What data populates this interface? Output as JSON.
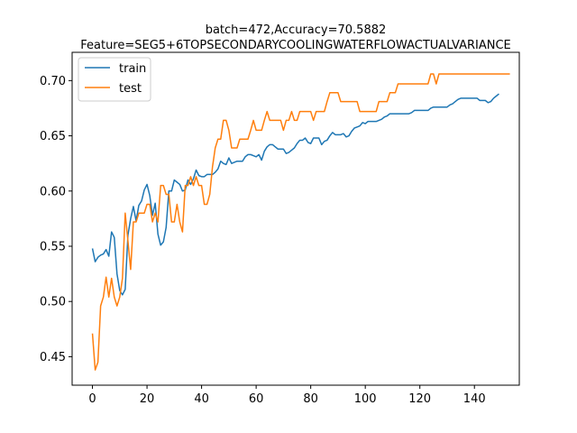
{
  "chart_data": {
    "type": "line",
    "title_lines": [
      "batch=472,Accuracy=70.5882",
      "Feature=SEG5+6TOPSECONDARYCOOLINGWATERFLOWACTUALVARIANCE"
    ],
    "xlabel": "",
    "ylabel": "",
    "xlim": [
      -7.45,
      156.45
    ],
    "ylim": [
      0.4242,
      0.7256
    ],
    "x_ticks": [
      0,
      20,
      40,
      60,
      80,
      100,
      120,
      140
    ],
    "y_ticks": [
      0.45,
      0.5,
      0.55,
      0.6,
      0.65,
      0.7
    ],
    "grid": false,
    "legend_position": "top-left",
    "series": [
      {
        "name": "train",
        "color": "#1f77b4",
        "values": [
          0.548,
          0.536,
          0.54,
          0.542,
          0.543,
          0.547,
          0.541,
          0.563,
          0.558,
          0.525,
          0.51,
          0.506,
          0.511,
          0.56,
          0.575,
          0.586,
          0.573,
          0.587,
          0.591,
          0.601,
          0.606,
          0.596,
          0.578,
          0.589,
          0.561,
          0.551,
          0.554,
          0.567,
          0.6,
          0.6,
          0.61,
          0.608,
          0.606,
          0.6,
          0.601,
          0.61,
          0.606,
          0.611,
          0.619,
          0.614,
          0.613,
          0.613,
          0.615,
          0.615,
          0.615,
          0.617,
          0.62,
          0.627,
          0.625,
          0.624,
          0.63,
          0.625,
          0.626,
          0.627,
          0.627,
          0.627,
          0.631,
          0.633,
          0.633,
          0.632,
          0.631,
          0.633,
          0.628,
          0.636,
          0.64,
          0.642,
          0.642,
          0.64,
          0.638,
          0.638,
          0.638,
          0.634,
          0.635,
          0.637,
          0.639,
          0.643,
          0.646,
          0.646,
          0.648,
          0.644,
          0.643,
          0.648,
          0.648,
          0.648,
          0.642,
          0.645,
          0.646,
          0.65,
          0.653,
          0.651,
          0.651,
          0.651,
          0.652,
          0.649,
          0.65,
          0.654,
          0.657,
          0.658,
          0.659,
          0.662,
          0.661,
          0.663,
          0.663,
          0.663,
          0.663,
          0.664,
          0.665,
          0.667,
          0.668,
          0.67,
          0.67,
          0.67,
          0.67,
          0.67,
          0.67,
          0.67,
          0.67,
          0.671,
          0.673,
          0.673,
          0.673,
          0.673,
          0.673,
          0.673,
          0.675,
          0.676,
          0.676,
          0.676,
          0.676,
          0.676,
          0.676,
          0.678,
          0.679,
          0.681,
          0.683,
          0.684,
          0.684,
          0.684,
          0.684,
          0.684,
          0.684,
          0.684,
          0.682,
          0.682,
          0.682,
          0.68,
          0.681,
          0.684,
          0.686,
          0.688
        ]
      },
      {
        "name": "test",
        "color": "#ff7f0e",
        "values": [
          0.471,
          0.438,
          0.445,
          0.496,
          0.504,
          0.522,
          0.504,
          0.521,
          0.504,
          0.496,
          0.504,
          0.521,
          0.58,
          0.555,
          0.529,
          0.572,
          0.572,
          0.58,
          0.58,
          0.58,
          0.588,
          0.588,
          0.572,
          0.58,
          0.572,
          0.605,
          0.605,
          0.597,
          0.597,
          0.572,
          0.572,
          0.588,
          0.572,
          0.563,
          0.605,
          0.605,
          0.613,
          0.605,
          0.613,
          0.605,
          0.605,
          0.588,
          0.588,
          0.597,
          0.622,
          0.639,
          0.647,
          0.647,
          0.664,
          0.664,
          0.655,
          0.639,
          0.639,
          0.639,
          0.647,
          0.647,
          0.647,
          0.647,
          0.655,
          0.664,
          0.655,
          0.655,
          0.655,
          0.664,
          0.672,
          0.664,
          0.664,
          0.664,
          0.664,
          0.664,
          0.655,
          0.664,
          0.664,
          0.672,
          0.664,
          0.664,
          0.672,
          0.672,
          0.672,
          0.672,
          0.672,
          0.664,
          0.672,
          0.672,
          0.672,
          0.672,
          0.681,
          0.689,
          0.689,
          0.689,
          0.689,
          0.681,
          0.681,
          0.681,
          0.681,
          0.681,
          0.681,
          0.681,
          0.672,
          0.672,
          0.672,
          0.672,
          0.672,
          0.672,
          0.672,
          0.681,
          0.681,
          0.681,
          0.681,
          0.689,
          0.689,
          0.689,
          0.697,
          0.697,
          0.697,
          0.697,
          0.697,
          0.697,
          0.697,
          0.697,
          0.697,
          0.697,
          0.697,
          0.697,
          0.706,
          0.706,
          0.697,
          0.706,
          0.706,
          0.706,
          0.706,
          0.706,
          0.706,
          0.706,
          0.706,
          0.706,
          0.706,
          0.706,
          0.706,
          0.706,
          0.706,
          0.706,
          0.706,
          0.706,
          0.706,
          0.706,
          0.706,
          0.706,
          0.706,
          0.706,
          0.706,
          0.706,
          0.706,
          0.706
        ]
      }
    ]
  }
}
